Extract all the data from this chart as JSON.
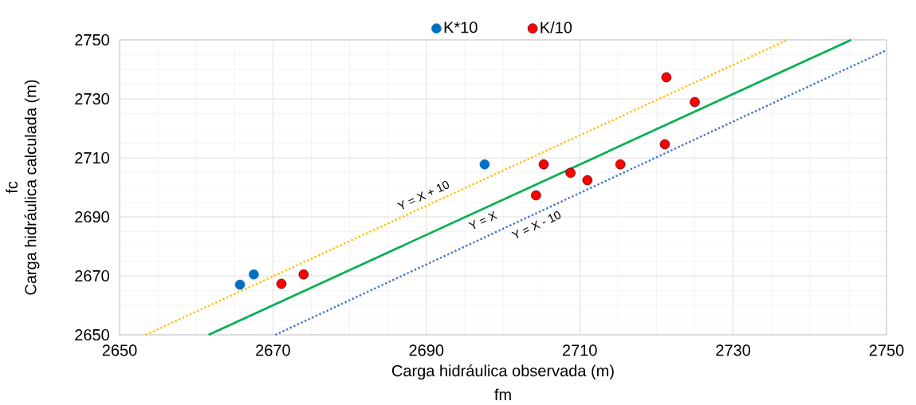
{
  "chart_data": {
    "type": "scatter",
    "xlabel": "Carga hidráulica observada (m)",
    "ylabel": "Carga hidráulica calculada (m)",
    "xlim": [
      2650,
      2750
    ],
    "ylim": [
      2650,
      2750
    ],
    "xticks": [
      2650,
      2670,
      2690,
      2710,
      2730,
      2750
    ],
    "yticks": [
      2650,
      2670,
      2690,
      2710,
      2730,
      2750
    ],
    "grid": true,
    "legend": "top",
    "series": [
      {
        "name": "K*10",
        "color": "#0070c0",
        "marker": "circle",
        "x": [
          2665.7,
          2667.5,
          2697.6
        ],
        "values": [
          2667.0,
          2670.5,
          2707.8
        ]
      },
      {
        "name": "K/10",
        "color": "#ff0000",
        "marker": "circle",
        "x": [
          2671.1,
          2674.0,
          2704.3,
          2705.3,
          2708.8,
          2711.0,
          2715.3,
          2721.1,
          2721.3,
          2725.0
        ],
        "values": [
          2667.3,
          2670.5,
          2697.3,
          2707.8,
          2704.9,
          2702.4,
          2707.8,
          2714.6,
          2737.3,
          2728.9
        ]
      },
      {
        "type": "line",
        "color": "#ffc000",
        "line_style": "dotted",
        "x": [
          2653.4,
          2737.1
        ],
        "values": [
          2650,
          2750
        ]
      },
      {
        "type": "line",
        "color": "#00b050",
        "line_style": "solid",
        "x": [
          2661.6,
          2745.4
        ],
        "values": [
          2650,
          2750
        ]
      },
      {
        "type": "line",
        "color": "#4472c4",
        "line_style": "dotted",
        "x": [
          2670.3,
          2750
        ],
        "values": [
          2650,
          2746.5
        ]
      }
    ],
    "annotations": [
      "fm",
      "fc",
      "Y = X + 10",
      "Y = X",
      "Y = X - 10"
    ]
  }
}
